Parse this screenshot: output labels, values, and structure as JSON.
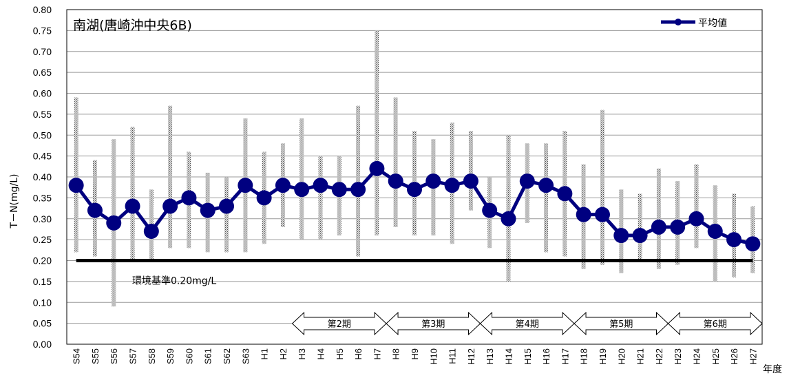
{
  "chart_data": {
    "type": "line",
    "title": "南湖(唐崎沖中央6B)",
    "ylabel": "T－N(mg/L)",
    "xlabel": "年度",
    "ylim": [
      0,
      0.8
    ],
    "yticks": [
      "0.00",
      "0.05",
      "0.10",
      "0.15",
      "0.20",
      "0.25",
      "0.30",
      "0.35",
      "0.40",
      "0.45",
      "0.50",
      "0.55",
      "0.60",
      "0.65",
      "0.70",
      "0.75",
      "0.80"
    ],
    "grid": true,
    "legend": {
      "position": "top-right",
      "label": "平均値"
    },
    "categories": [
      "S54",
      "S55",
      "S56",
      "S57",
      "S58",
      "S59",
      "S60",
      "S61",
      "S62",
      "S63",
      "H1",
      "H2",
      "H3",
      "H4",
      "H5",
      "H6",
      "H7",
      "H8",
      "H9",
      "H10",
      "H11",
      "H12",
      "H13",
      "H14",
      "H15",
      "H16",
      "H17",
      "H18",
      "H19",
      "H20",
      "H21",
      "H22",
      "H23",
      "H24",
      "H25",
      "H26",
      "H27"
    ],
    "series": [
      {
        "name": "平均値",
        "color": "#000080",
        "values": [
          0.38,
          0.32,
          0.29,
          0.33,
          0.27,
          0.33,
          0.35,
          0.32,
          0.33,
          0.38,
          0.35,
          0.38,
          0.37,
          0.38,
          0.37,
          0.37,
          0.42,
          0.39,
          0.37,
          0.39,
          0.38,
          0.39,
          0.32,
          0.3,
          0.39,
          0.38,
          0.36,
          0.31,
          0.31,
          0.26,
          0.26,
          0.28,
          0.28,
          0.3,
          0.27,
          0.25,
          0.24
        ]
      }
    ],
    "range_min": [
      0.22,
      0.21,
      0.09,
      0.2,
      0.2,
      0.23,
      0.23,
      0.22,
      0.22,
      0.22,
      0.24,
      0.28,
      0.25,
      0.25,
      0.26,
      0.21,
      0.26,
      0.28,
      0.26,
      0.26,
      0.24,
      0.32,
      0.23,
      0.15,
      0.29,
      0.22,
      0.21,
      0.18,
      0.19,
      0.17,
      0.2,
      0.18,
      0.19,
      0.23,
      0.15,
      0.16,
      0.17
    ],
    "range_max": [
      0.59,
      0.44,
      0.49,
      0.52,
      0.37,
      0.57,
      0.46,
      0.41,
      0.4,
      0.54,
      0.46,
      0.48,
      0.54,
      0.45,
      0.45,
      0.57,
      0.75,
      0.59,
      0.51,
      0.49,
      0.53,
      0.51,
      0.4,
      0.5,
      0.48,
      0.48,
      0.51,
      0.43,
      0.56,
      0.37,
      0.36,
      0.42,
      0.39,
      0.43,
      0.38,
      0.36,
      0.33
    ],
    "standard": {
      "value": 0.2,
      "label": "環境基準0.20mg/L"
    },
    "periods": [
      {
        "label": "第2期",
        "from": "H3",
        "to": "H7"
      },
      {
        "label": "第3期",
        "from": "H8",
        "to": "H12"
      },
      {
        "label": "第4期",
        "from": "H13",
        "to": "H17"
      },
      {
        "label": "第5期",
        "from": "H18",
        "to": "H22"
      },
      {
        "label": "第6期",
        "from": "H23",
        "to": "H27"
      }
    ]
  }
}
